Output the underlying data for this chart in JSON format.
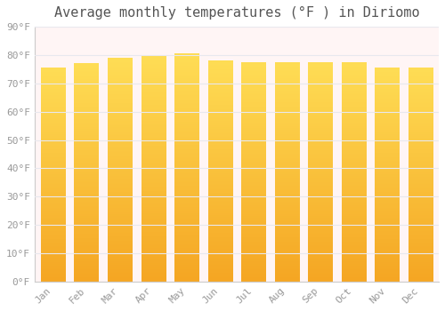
{
  "title": "Average monthly temperatures (°F ) in Diriomo",
  "months": [
    "Jan",
    "Feb",
    "Mar",
    "Apr",
    "May",
    "Jun",
    "Jul",
    "Aug",
    "Sep",
    "Oct",
    "Nov",
    "Dec"
  ],
  "temperatures": [
    75.5,
    77.0,
    79.0,
    80.0,
    80.5,
    78.0,
    77.5,
    77.5,
    77.5,
    77.5,
    75.5,
    75.5
  ],
  "bar_color_bottom": "#F5A623",
  "bar_color_top": "#FFDD55",
  "bar_color_edge_dark": "#E8940A",
  "background_color": "#FFFFFF",
  "plot_bg_color": "#FFF5F5",
  "grid_color": "#E8E8EE",
  "tick_label_color": "#999999",
  "title_color": "#555555",
  "ylim": [
    0,
    90
  ],
  "yticks": [
    0,
    10,
    20,
    30,
    40,
    50,
    60,
    70,
    80,
    90
  ],
  "ytick_labels": [
    "0°F",
    "10°F",
    "20°F",
    "30°F",
    "40°F",
    "50°F",
    "60°F",
    "70°F",
    "80°F",
    "90°F"
  ],
  "title_fontsize": 11,
  "tick_fontsize": 8,
  "font_family": "monospace"
}
